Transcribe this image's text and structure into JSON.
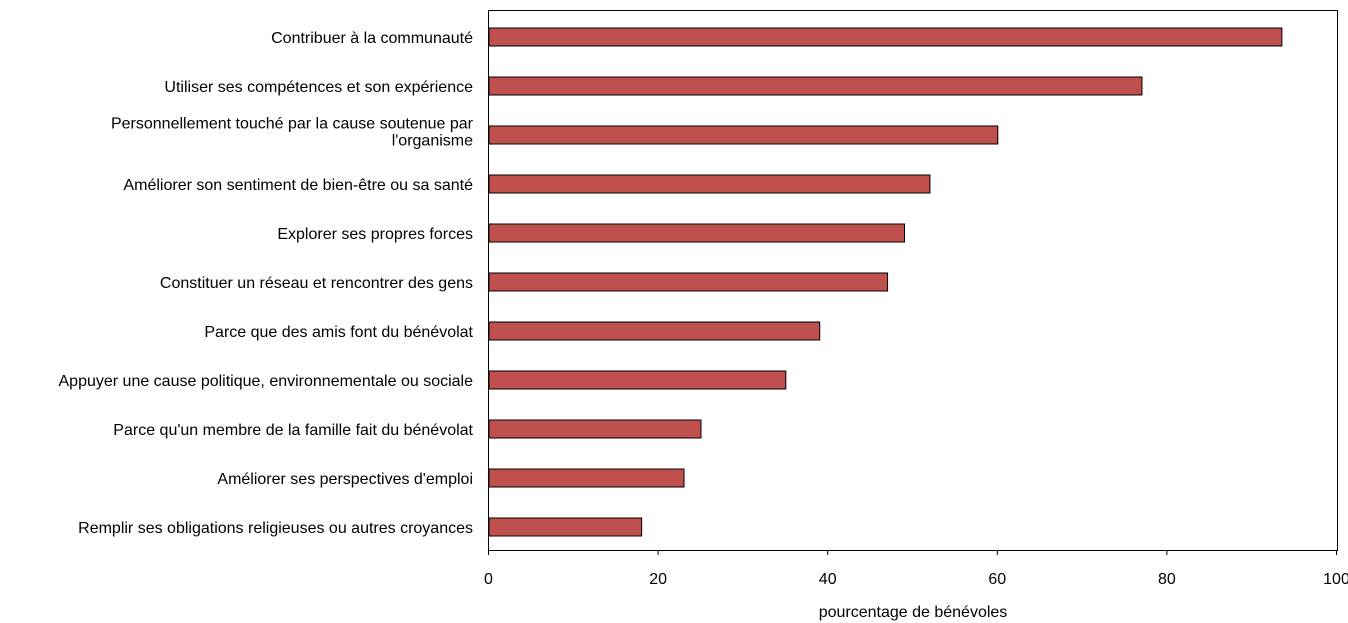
{
  "chart_data": {
    "type": "bar",
    "orientation": "horizontal",
    "title": "",
    "xlabel": "pourcentage de bénévoles",
    "ylabel": "",
    "xlim": [
      0,
      100
    ],
    "xticks": [
      0,
      20,
      40,
      60,
      80,
      100
    ],
    "grid": false,
    "bar_color": "#c0504d",
    "categories": [
      [
        "Contribuer à la communauté"
      ],
      [
        "Utiliser ses compétences et son expérience"
      ],
      [
        "Personnellement touché par la cause soutenue par",
        "l'organisme"
      ],
      [
        "Améliorer son sentiment de bien-être ou sa santé"
      ],
      [
        "Explorer ses propres forces"
      ],
      [
        "Constituer un réseau et rencontrer des gens"
      ],
      [
        "Parce que des amis font du bénévolat"
      ],
      [
        "Appuyer une cause politique, environnementale ou sociale"
      ],
      [
        "Parce qu'un membre de la famille fait du bénévolat"
      ],
      [
        "Améliorer ses perspectives d'emploi"
      ],
      [
        "Remplir ses obligations religieuses ou autres croyances"
      ]
    ],
    "values": [
      93.5,
      77,
      60,
      52,
      49,
      47,
      39,
      35,
      25,
      23,
      18
    ]
  }
}
